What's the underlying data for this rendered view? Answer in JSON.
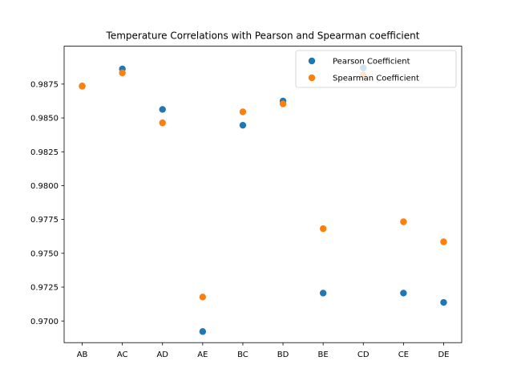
{
  "chart_data": {
    "type": "scatter",
    "title": "Temperature Correlations with Pearson and Spearman coefficient",
    "xlabel": "",
    "ylabel": "",
    "categories": [
      "AB",
      "AC",
      "AD",
      "AE",
      "BC",
      "BD",
      "BE",
      "CD",
      "CE",
      "DE"
    ],
    "ylim": [
      0.9684,
      0.9903
    ],
    "yticks": [
      0.97,
      0.9725,
      0.975,
      0.9775,
      0.98,
      0.9825,
      0.985,
      0.9875
    ],
    "ytick_labels": [
      "0.9700",
      "0.9725",
      "0.9750",
      "0.9775",
      "0.9800",
      "0.9825",
      "0.9850",
      "0.9875"
    ],
    "grid": false,
    "legend_position": "top-right",
    "series": [
      {
        "name": "Pearson Coefficient",
        "color": "#1f77b4",
        "values": [
          0.98735,
          0.98862,
          0.98563,
          0.96922,
          0.98446,
          0.98625,
          0.97206,
          0.9887,
          0.97206,
          0.97137
        ]
      },
      {
        "name": "Spearman Coefficient",
        "color": "#ff7f0e",
        "values": [
          0.98735,
          0.98833,
          0.98464,
          0.97177,
          0.98545,
          0.98604,
          0.97682,
          0.98818,
          0.97733,
          0.97585
        ]
      }
    ]
  }
}
